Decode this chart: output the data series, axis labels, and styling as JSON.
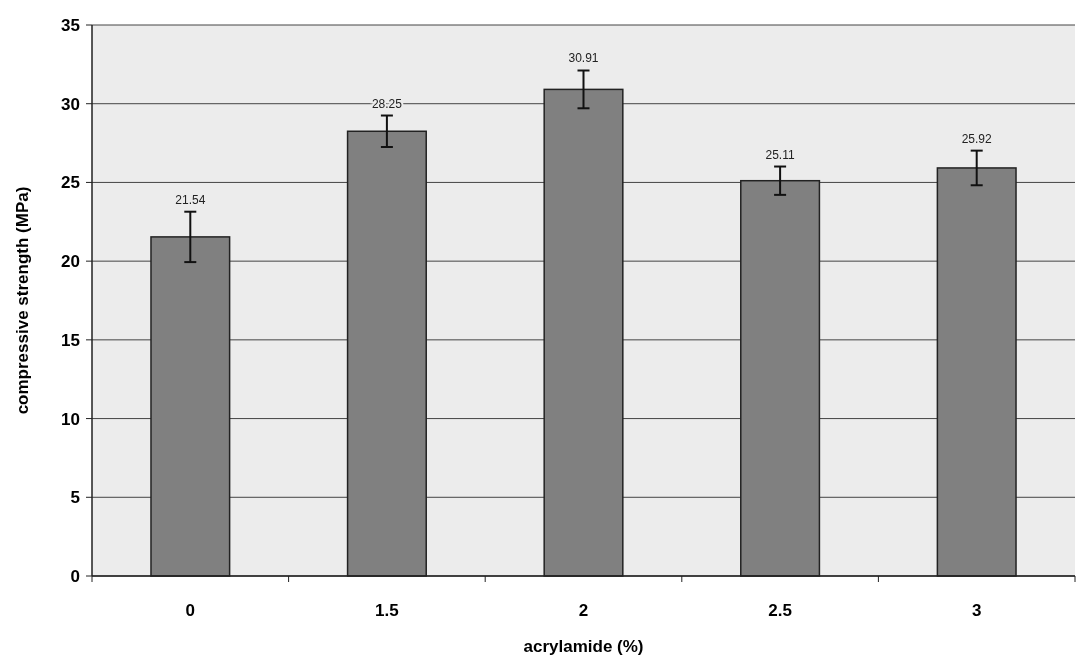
{
  "chart_data": {
    "type": "bar",
    "xlabel": "acrylamide (%)",
    "ylabel": "compressive strength (MPa)",
    "categories": [
      "0",
      "1.5",
      "2",
      "2.5",
      "3"
    ],
    "values": [
      21.54,
      28.25,
      30.91,
      25.11,
      25.92
    ],
    "errors": [
      1.6,
      1.0,
      1.2,
      0.9,
      1.1
    ],
    "color": "#808080",
    "data_labels": true,
    "ylim": [
      0,
      35
    ],
    "yticks": [
      0,
      5,
      10,
      15,
      20,
      25,
      30,
      35
    ],
    "grid": "y"
  }
}
